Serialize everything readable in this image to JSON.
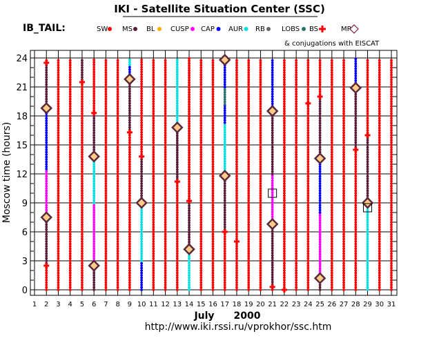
{
  "chart_data": {
    "type": "scatter",
    "title": "IKI - Satellite Situation Center (SSC)",
    "satellite": "IB_TAIL:",
    "xlabel_month": "July",
    "xlabel_year": "2000",
    "ylabel": "Moscow time (hours)",
    "url": "http://www.iki.rssi.ru/vprokhor/ssc.htm",
    "conjugation_note": "& conjugations with EISCAT",
    "x_ticks": [
      1,
      2,
      3,
      4,
      5,
      6,
      7,
      8,
      9,
      10,
      11,
      12,
      13,
      14,
      15,
      16,
      17,
      18,
      19,
      20,
      21,
      22,
      23,
      24,
      25,
      26,
      27,
      28,
      29,
      30,
      31
    ],
    "y_ticks": [
      0,
      3,
      6,
      9,
      12,
      15,
      18,
      21,
      24
    ],
    "xlim": [
      1,
      31
    ],
    "ylim": [
      0,
      24
    ],
    "legend": [
      {
        "label": "SW",
        "color": "#ff0000",
        "marker": "dot"
      },
      {
        "label": "MS",
        "color": "#5a1a3a",
        "marker": "dot"
      },
      {
        "label": "BL",
        "color": "#ffaa00",
        "marker": "dot"
      },
      {
        "label": "CUSP",
        "color": "#ff00ff",
        "marker": "dot"
      },
      {
        "label": "CAP",
        "color": "#0000ff",
        "marker": "dot"
      },
      {
        "label": "AUR",
        "color": "#00e0e0",
        "marker": "dot"
      },
      {
        "label": "RB",
        "color": "#666666",
        "marker": "dot"
      },
      {
        "label": "LOBS",
        "color": "#2a7070",
        "marker": "dot"
      },
      {
        "label": "BS",
        "color": "#ff0000",
        "marker": "cross"
      },
      {
        "label": "MP",
        "color": "#802040",
        "marker": "diamond"
      }
    ],
    "days": [
      {
        "x": 2,
        "segments": [
          {
            "region": "SW",
            "from": 0,
            "to": 2.5
          },
          {
            "region": "MS",
            "from": 2.5,
            "to": 7.5
          },
          {
            "region": "CUSP",
            "from": 7.5,
            "to": 12.5
          },
          {
            "region": "CAP",
            "from": 12.5,
            "to": 18.5
          },
          {
            "region": "MS",
            "from": 18.5,
            "to": 23.5
          },
          {
            "region": "SW",
            "from": 23.5,
            "to": 24
          }
        ],
        "bs": [
          2.5,
          23.5
        ],
        "mp": [
          7.5,
          18.8
        ]
      },
      {
        "x": 3,
        "segments": [
          {
            "region": "SW",
            "from": 0,
            "to": 24
          }
        ],
        "bs": [],
        "mp": []
      },
      {
        "x": 4,
        "segments": [
          {
            "region": "SW",
            "from": 0,
            "to": 24
          }
        ],
        "bs": [],
        "mp": []
      },
      {
        "x": 5,
        "segments": [
          {
            "region": "SW",
            "from": 0,
            "to": 21.5
          },
          {
            "region": "MS",
            "from": 21.5,
            "to": 24
          }
        ],
        "bs": [
          21.5
        ],
        "mp": []
      },
      {
        "x": 6,
        "segments": [
          {
            "region": "MS",
            "from": 0,
            "to": 2.5
          },
          {
            "region": "CUSP",
            "from": 2.5,
            "to": 9
          },
          {
            "region": "AUR",
            "from": 9,
            "to": 13.5
          },
          {
            "region": "MS",
            "from": 13.5,
            "to": 18.3
          },
          {
            "region": "SW",
            "from": 18.3,
            "to": 24
          }
        ],
        "bs": [
          18.3
        ],
        "mp": [
          2.5,
          13.8
        ]
      },
      {
        "x": 7,
        "segments": [
          {
            "region": "SW",
            "from": 0,
            "to": 24
          }
        ],
        "bs": [],
        "mp": []
      },
      {
        "x": 8,
        "segments": [
          {
            "region": "SW",
            "from": 0,
            "to": 24
          }
        ],
        "bs": [],
        "mp": []
      },
      {
        "x": 9,
        "segments": [
          {
            "region": "SW",
            "from": 0,
            "to": 16.3
          },
          {
            "region": "MS",
            "from": 16.3,
            "to": 21.8
          },
          {
            "region": "CAP",
            "from": 21.8,
            "to": 23.3
          },
          {
            "region": "AUR",
            "from": 23.3,
            "to": 24
          }
        ],
        "bs": [
          16.3
        ],
        "mp": [
          21.8
        ]
      },
      {
        "x": 10,
        "segments": [
          {
            "region": "CAP",
            "from": 0,
            "to": 3
          },
          {
            "region": "AUR",
            "from": 3,
            "to": 9
          },
          {
            "region": "MS",
            "from": 9,
            "to": 13.8
          },
          {
            "region": "SW",
            "from": 13.8,
            "to": 24
          }
        ],
        "bs": [
          13.8
        ],
        "mp": [
          9
        ]
      },
      {
        "x": 11,
        "segments": [
          {
            "region": "SW",
            "from": 0,
            "to": 24
          }
        ],
        "bs": [],
        "mp": []
      },
      {
        "x": 12,
        "segments": [
          {
            "region": "SW",
            "from": 0,
            "to": 24
          }
        ],
        "bs": [],
        "mp": []
      },
      {
        "x": 13,
        "segments": [
          {
            "region": "SW",
            "from": 0,
            "to": 11.2
          },
          {
            "region": "MS",
            "from": 11.2,
            "to": 16.8
          },
          {
            "region": "AUR",
            "from": 16.8,
            "to": 24
          }
        ],
        "bs": [
          11.2
        ],
        "mp": [
          16.8
        ]
      },
      {
        "x": 14,
        "segments": [
          {
            "region": "AUR",
            "from": 0,
            "to": 4.2
          },
          {
            "region": "MS",
            "from": 4.2,
            "to": 9.2
          },
          {
            "region": "SW",
            "from": 9.2,
            "to": 24
          }
        ],
        "bs": [
          9.2
        ],
        "mp": [
          4.2
        ]
      },
      {
        "x": 15,
        "segments": [
          {
            "region": "SW",
            "from": 0,
            "to": 24
          }
        ],
        "bs": [],
        "mp": []
      },
      {
        "x": 16,
        "segments": [
          {
            "region": "SW",
            "from": 0,
            "to": 24
          }
        ],
        "bs": [],
        "mp": []
      },
      {
        "x": 17,
        "segments": [
          {
            "region": "SW",
            "from": 0,
            "to": 6
          },
          {
            "region": "MS",
            "from": 6,
            "to": 11.8
          },
          {
            "region": "AUR",
            "from": 11.8,
            "to": 17.3
          },
          {
            "region": "CAP",
            "from": 17.3,
            "to": 19.2
          },
          {
            "region": "LOBS",
            "from": 19.2,
            "to": 21
          },
          {
            "region": "CAP",
            "from": 21,
            "to": 23.8
          },
          {
            "region": "MS",
            "from": 23.8,
            "to": 24
          }
        ],
        "bs": [
          6
        ],
        "mp": [
          11.8,
          23.8
        ]
      },
      {
        "x": 18,
        "segments": [
          {
            "region": "SW",
            "from": 0,
            "to": 24
          }
        ],
        "bs": [
          5
        ],
        "mp": []
      },
      {
        "x": 19,
        "segments": [
          {
            "region": "SW",
            "from": 0,
            "to": 24
          }
        ],
        "bs": [],
        "mp": []
      },
      {
        "x": 20,
        "segments": [
          {
            "region": "SW",
            "from": 0,
            "to": 24
          }
        ],
        "bs": [],
        "mp": []
      },
      {
        "x": 21,
        "segments": [
          {
            "region": "SW",
            "from": 0,
            "to": 0.3
          },
          {
            "region": "MS",
            "from": 0.3,
            "to": 6.8
          },
          {
            "region": "CUSP",
            "from": 6.8,
            "to": 12
          },
          {
            "region": "MS",
            "from": 12,
            "to": 18.5
          },
          {
            "region": "CAP",
            "from": 18.5,
            "to": 24
          }
        ],
        "bs": [
          0.3
        ],
        "mp": [
          6.8,
          18.5
        ]
      },
      {
        "x": 22,
        "segments": [
          {
            "region": "SW",
            "from": 0,
            "to": 24
          }
        ],
        "bs": [
          0
        ],
        "mp": []
      },
      {
        "x": 23,
        "segments": [
          {
            "region": "SW",
            "from": 0,
            "to": 24
          }
        ],
        "bs": [],
        "mp": []
      },
      {
        "x": 24,
        "segments": [
          {
            "region": "SW",
            "from": 0,
            "to": 24
          }
        ],
        "bs": [
          19.3
        ],
        "mp": []
      },
      {
        "x": 25,
        "segments": [
          {
            "region": "MS",
            "from": 0,
            "to": 1.2
          },
          {
            "region": "CUSP",
            "from": 1.2,
            "to": 8
          },
          {
            "region": "CAP",
            "from": 8,
            "to": 13.5
          },
          {
            "region": "MS",
            "from": 13.5,
            "to": 20
          },
          {
            "region": "SW",
            "from": 20,
            "to": 24
          }
        ],
        "bs": [
          20
        ],
        "mp": [
          1.2,
          13.6
        ]
      },
      {
        "x": 26,
        "segments": [
          {
            "region": "SW",
            "from": 0,
            "to": 24
          }
        ],
        "bs": [],
        "mp": []
      },
      {
        "x": 27,
        "segments": [
          {
            "region": "SW",
            "from": 0,
            "to": 24
          }
        ],
        "bs": [],
        "mp": []
      },
      {
        "x": 28,
        "segments": [
          {
            "region": "SW",
            "from": 0,
            "to": 14.5
          },
          {
            "region": "MS",
            "from": 14.5,
            "to": 20.9
          },
          {
            "region": "CAP",
            "from": 20.9,
            "to": 24
          }
        ],
        "bs": [
          14.5
        ],
        "mp": [
          20.9
        ]
      },
      {
        "x": 29,
        "segments": [
          {
            "region": "AUR",
            "from": 0,
            "to": 9
          },
          {
            "region": "MS",
            "from": 9,
            "to": 16
          },
          {
            "region": "SW",
            "from": 16,
            "to": 24
          }
        ],
        "bs": [
          16
        ],
        "mp": [
          9
        ]
      },
      {
        "x": 30,
        "segments": [
          {
            "region": "SW",
            "from": 0,
            "to": 24
          }
        ],
        "bs": [],
        "mp": []
      },
      {
        "x": 31,
        "segments": [
          {
            "region": "SW",
            "from": 0,
            "to": 24
          }
        ],
        "bs": [],
        "mp": []
      }
    ],
    "eiscat_conjugations": [
      {
        "x": 21,
        "y": 10
      },
      {
        "x": 29,
        "y": 8.5
      }
    ]
  }
}
